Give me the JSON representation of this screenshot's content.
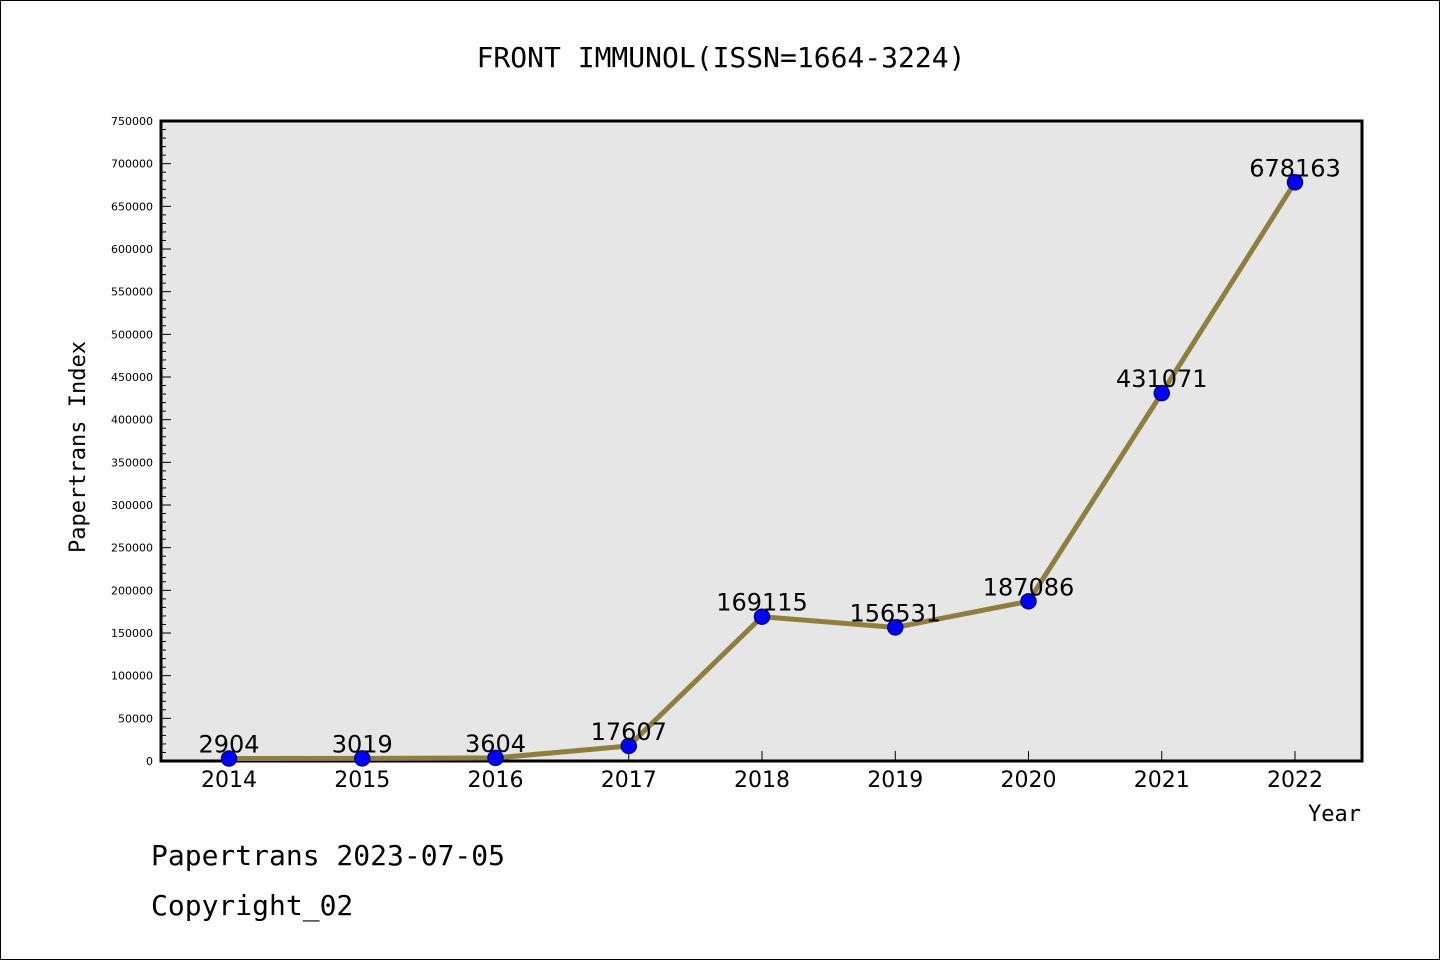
{
  "chart_data": {
    "type": "line",
    "title": "FRONT IMMUNOL(ISSN=1664-3224)",
    "xlabel": "Year",
    "ylabel": "Papertrans Index",
    "categories": [
      "2014",
      "2015",
      "2016",
      "2017",
      "2018",
      "2019",
      "2020",
      "2021",
      "2022"
    ],
    "series": [
      {
        "values": [
          2904,
          3019,
          3604,
          17607,
          169115,
          156531,
          187086,
          431071,
          678163
        ]
      }
    ],
    "ylim": [
      0,
      750000
    ],
    "yticks": [
      0,
      50000,
      100000,
      150000,
      200000,
      250000,
      300000,
      350000,
      400000,
      450000,
      500000,
      550000,
      600000,
      650000,
      700000,
      750000
    ],
    "grid": false,
    "legend": "none",
    "colors": {
      "line": "#8f7f3f",
      "marker_fill": "#0000ff",
      "marker_stroke": "#000080",
      "plot_background": "#e6e6e6"
    }
  },
  "footer": {
    "line1": "Papertrans 2023-07-05",
    "line2": "Copyright_02"
  }
}
